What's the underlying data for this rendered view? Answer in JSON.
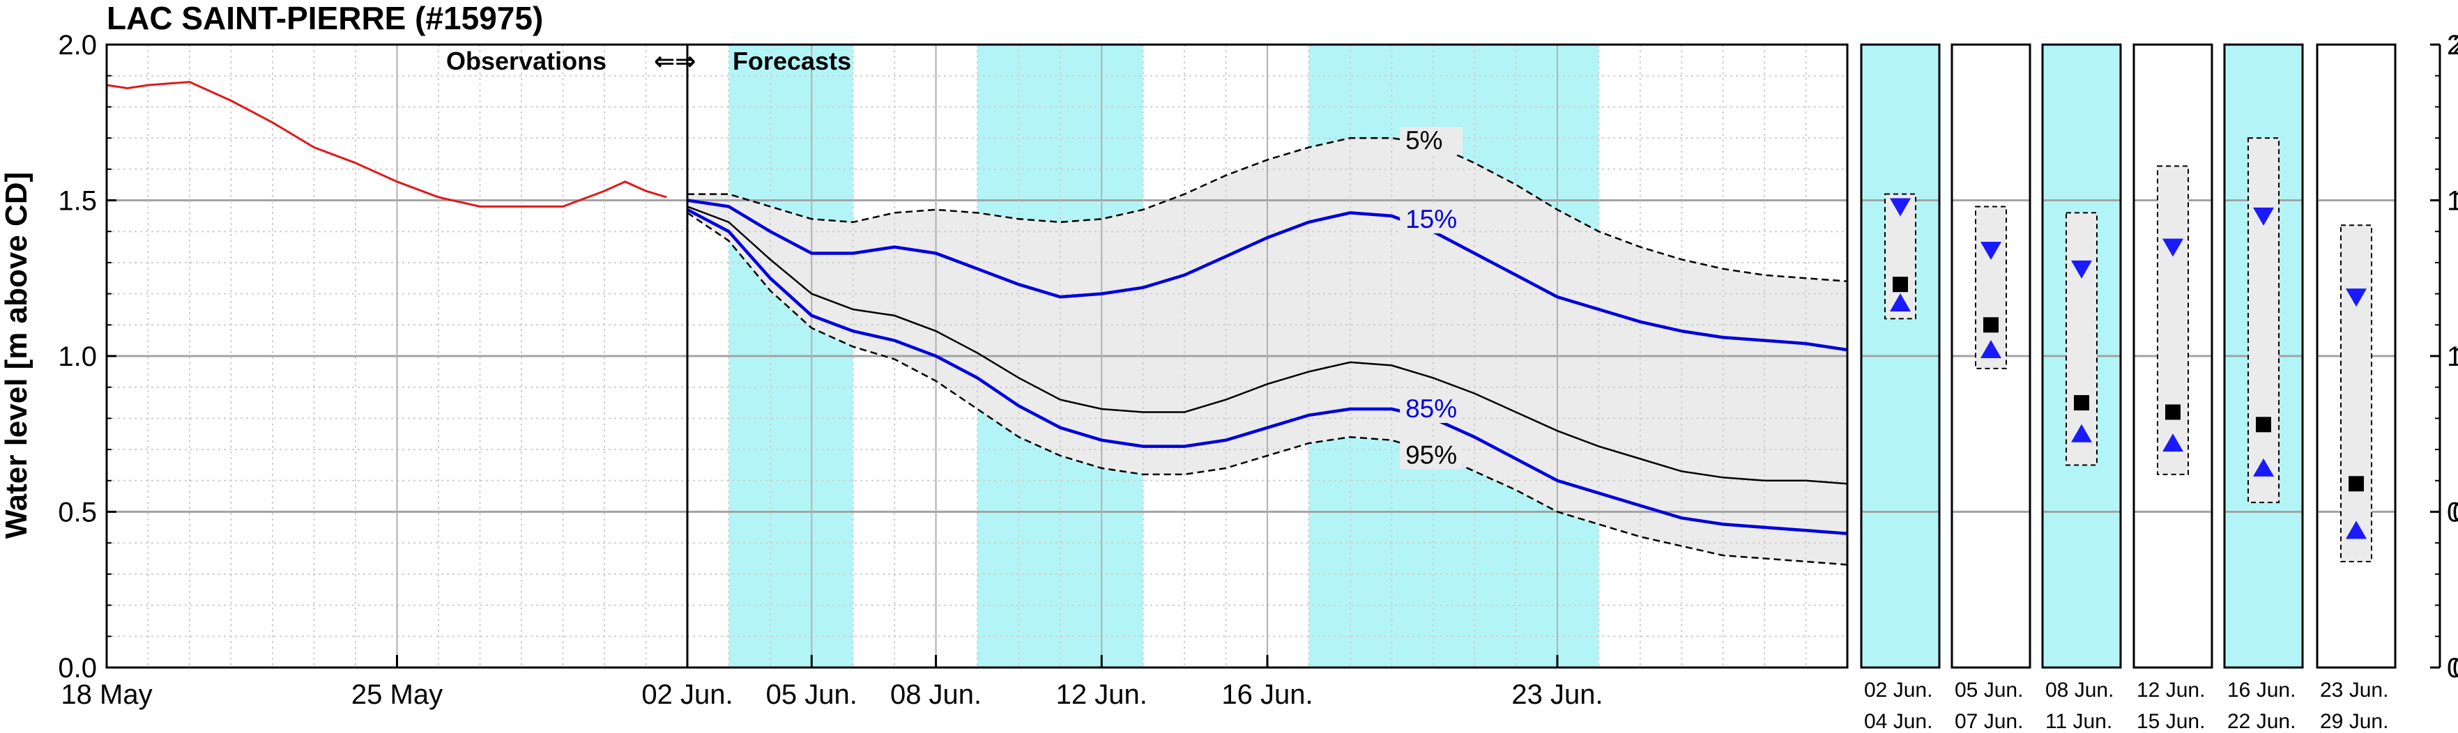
{
  "chart_data": {
    "type": "line",
    "title": "LAC SAINT-PIERRE (#15975)",
    "ylabel": "Water level [m above CD]",
    "ylim": [
      0.0,
      2.0
    ],
    "yticks": [
      "0.0",
      "0.5",
      "1.0",
      "1.5",
      "2.0"
    ],
    "grid": true,
    "annotation": {
      "observations": "Observations",
      "arrows": "⇐⇒",
      "forecasts": "Forecasts"
    },
    "observations": {
      "x_ticks": [
        "18 May",
        "25 May"
      ],
      "x_tick_days": [
        0,
        7
      ],
      "x_range_days": [
        0,
        14
      ],
      "color": "#e0191c",
      "points": [
        [
          0,
          1.87
        ],
        [
          0.5,
          1.86
        ],
        [
          1,
          1.87
        ],
        [
          2,
          1.88
        ],
        [
          3,
          1.82
        ],
        [
          4,
          1.75
        ],
        [
          5,
          1.67
        ],
        [
          6,
          1.62
        ],
        [
          7,
          1.56
        ],
        [
          8,
          1.51
        ],
        [
          9,
          1.48
        ],
        [
          10,
          1.48
        ],
        [
          11,
          1.48
        ],
        [
          12,
          1.53
        ],
        [
          12.5,
          1.56
        ],
        [
          13,
          1.53
        ],
        [
          13.5,
          1.51
        ]
      ]
    },
    "forecasts": {
      "x_ticks": [
        "02 Jun.",
        "05 Jun.",
        "08 Jun.",
        "12 Jun.",
        "16 Jun.",
        "23 Jun."
      ],
      "x_tick_days": [
        0,
        3,
        6,
        10,
        14,
        21
      ],
      "x_range_days": [
        0,
        28
      ],
      "shaded_periods": [
        [
          1,
          4
        ],
        [
          7,
          11
        ],
        [
          15,
          22
        ]
      ],
      "shade_color": "#b3f5f7",
      "band_color": "#ebebeb",
      "series": [
        {
          "name": "5%",
          "style": "dashed",
          "color": "#000000",
          "points": [
            [
              0,
              1.52
            ],
            [
              1,
              1.52
            ],
            [
              2,
              1.48
            ],
            [
              3,
              1.44
            ],
            [
              4,
              1.43
            ],
            [
              5,
              1.46
            ],
            [
              6,
              1.47
            ],
            [
              7,
              1.46
            ],
            [
              8,
              1.44
            ],
            [
              9,
              1.43
            ],
            [
              10,
              1.44
            ],
            [
              11,
              1.47
            ],
            [
              12,
              1.52
            ],
            [
              13,
              1.58
            ],
            [
              14,
              1.63
            ],
            [
              15,
              1.67
            ],
            [
              16,
              1.7
            ],
            [
              17,
              1.7
            ],
            [
              18,
              1.68
            ],
            [
              19,
              1.62
            ],
            [
              20,
              1.55
            ],
            [
              21,
              1.47
            ],
            [
              22,
              1.4
            ],
            [
              23,
              1.35
            ],
            [
              24,
              1.31
            ],
            [
              25,
              1.28
            ],
            [
              26,
              1.26
            ],
            [
              27,
              1.25
            ],
            [
              28,
              1.24
            ]
          ]
        },
        {
          "name": "15%",
          "style": "solid",
          "color": "#0000dd",
          "points": [
            [
              0,
              1.5
            ],
            [
              1,
              1.48
            ],
            [
              2,
              1.4
            ],
            [
              3,
              1.33
            ],
            [
              4,
              1.33
            ],
            [
              5,
              1.35
            ],
            [
              6,
              1.33
            ],
            [
              7,
              1.28
            ],
            [
              8,
              1.23
            ],
            [
              9,
              1.19
            ],
            [
              10,
              1.2
            ],
            [
              11,
              1.22
            ],
            [
              12,
              1.26
            ],
            [
              13,
              1.32
            ],
            [
              14,
              1.38
            ],
            [
              15,
              1.43
            ],
            [
              16,
              1.46
            ],
            [
              17,
              1.45
            ],
            [
              18,
              1.4
            ],
            [
              19,
              1.33
            ],
            [
              20,
              1.26
            ],
            [
              21,
              1.19
            ],
            [
              22,
              1.15
            ],
            [
              23,
              1.11
            ],
            [
              24,
              1.08
            ],
            [
              25,
              1.06
            ],
            [
              26,
              1.05
            ],
            [
              27,
              1.04
            ],
            [
              28,
              1.02
            ]
          ]
        },
        {
          "name": "",
          "style": "solid",
          "color": "#000000",
          "points": [
            [
              0,
              1.48
            ],
            [
              1,
              1.43
            ],
            [
              2,
              1.31
            ],
            [
              3,
              1.2
            ],
            [
              4,
              1.15
            ],
            [
              5,
              1.13
            ],
            [
              6,
              1.08
            ],
            [
              7,
              1.01
            ],
            [
              8,
              0.93
            ],
            [
              9,
              0.86
            ],
            [
              10,
              0.83
            ],
            [
              11,
              0.82
            ],
            [
              12,
              0.82
            ],
            [
              13,
              0.86
            ],
            [
              14,
              0.91
            ],
            [
              15,
              0.95
            ],
            [
              16,
              0.98
            ],
            [
              17,
              0.97
            ],
            [
              18,
              0.93
            ],
            [
              19,
              0.88
            ],
            [
              20,
              0.82
            ],
            [
              21,
              0.76
            ],
            [
              22,
              0.71
            ],
            [
              23,
              0.67
            ],
            [
              24,
              0.63
            ],
            [
              25,
              0.61
            ],
            [
              26,
              0.6
            ],
            [
              27,
              0.6
            ],
            [
              28,
              0.59
            ]
          ]
        },
        {
          "name": "85%",
          "style": "solid",
          "color": "#0000dd",
          "points": [
            [
              0,
              1.47
            ],
            [
              1,
              1.4
            ],
            [
              2,
              1.25
            ],
            [
              3,
              1.13
            ],
            [
              4,
              1.08
            ],
            [
              5,
              1.05
            ],
            [
              6,
              1.0
            ],
            [
              7,
              0.93
            ],
            [
              8,
              0.84
            ],
            [
              9,
              0.77
            ],
            [
              10,
              0.73
            ],
            [
              11,
              0.71
            ],
            [
              12,
              0.71
            ],
            [
              13,
              0.73
            ],
            [
              14,
              0.77
            ],
            [
              15,
              0.81
            ],
            [
              16,
              0.83
            ],
            [
              17,
              0.83
            ],
            [
              18,
              0.8
            ],
            [
              19,
              0.74
            ],
            [
              20,
              0.67
            ],
            [
              21,
              0.6
            ],
            [
              22,
              0.56
            ],
            [
              23,
              0.52
            ],
            [
              24,
              0.48
            ],
            [
              25,
              0.46
            ],
            [
              26,
              0.45
            ],
            [
              27,
              0.44
            ],
            [
              28,
              0.43
            ]
          ]
        },
        {
          "name": "95%",
          "style": "dashed",
          "color": "#000000",
          "points": [
            [
              0,
              1.46
            ],
            [
              1,
              1.37
            ],
            [
              2,
              1.21
            ],
            [
              3,
              1.09
            ],
            [
              4,
              1.03
            ],
            [
              5,
              0.99
            ],
            [
              6,
              0.92
            ],
            [
              7,
              0.83
            ],
            [
              8,
              0.74
            ],
            [
              9,
              0.68
            ],
            [
              10,
              0.64
            ],
            [
              11,
              0.62
            ],
            [
              12,
              0.62
            ],
            [
              13,
              0.64
            ],
            [
              14,
              0.68
            ],
            [
              15,
              0.72
            ],
            [
              16,
              0.74
            ],
            [
              17,
              0.73
            ],
            [
              18,
              0.69
            ],
            [
              19,
              0.63
            ],
            [
              20,
              0.57
            ],
            [
              21,
              0.5
            ],
            [
              22,
              0.46
            ],
            [
              23,
              0.42
            ],
            [
              24,
              0.39
            ],
            [
              25,
              0.36
            ],
            [
              26,
              0.35
            ],
            [
              27,
              0.34
            ],
            [
              28,
              0.33
            ]
          ]
        }
      ]
    },
    "period_panels": [
      {
        "label_top": "02  Jun.",
        "label_bottom": "04  Jun.",
        "shaded": true,
        "band": [
          1.12,
          1.52
        ],
        "upper": 1.48,
        "median": 1.23,
        "lower": 1.17
      },
      {
        "label_top": "05  Jun.",
        "label_bottom": "07  Jun.",
        "shaded": false,
        "band": [
          0.96,
          1.48
        ],
        "upper": 1.34,
        "median": 1.1,
        "lower": 1.02
      },
      {
        "label_top": "08  Jun.",
        "label_bottom": "11  Jun.",
        "shaded": true,
        "band": [
          0.65,
          1.46
        ],
        "upper": 1.28,
        "median": 0.85,
        "lower": 0.75
      },
      {
        "label_top": "12  Jun.",
        "label_bottom": "15  Jun.",
        "shaded": false,
        "band": [
          0.62,
          1.61
        ],
        "upper": 1.35,
        "median": 0.82,
        "lower": 0.72
      },
      {
        "label_top": "16  Jun.",
        "label_bottom": "22  Jun.",
        "shaded": true,
        "band": [
          0.53,
          1.7
        ],
        "upper": 1.45,
        "median": 0.78,
        "lower": 0.64
      },
      {
        "label_top": "23  Jun.",
        "label_bottom": "29  Jun.",
        "shaded": false,
        "band": [
          0.34,
          1.42
        ],
        "upper": 1.19,
        "median": 0.59,
        "lower": 0.44
      }
    ]
  }
}
